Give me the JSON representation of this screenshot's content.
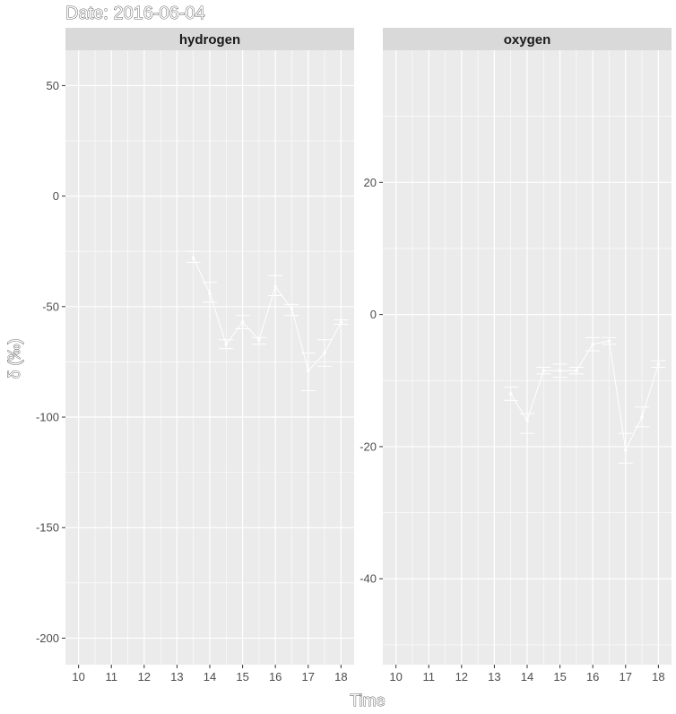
{
  "chart_data": {
    "type": "line",
    "title": "Date: 2016-06-04",
    "xlabel": "Time",
    "ylabel": "δ (‰)",
    "x_ticks": [
      10,
      11,
      12,
      13,
      14,
      15,
      16,
      17,
      18
    ],
    "xlim": [
      9.6,
      18.4
    ],
    "grid": true,
    "legend": "none",
    "colors": {
      "panel_bg": "#ebebeb",
      "strip_bg": "#d9d9d9",
      "grid": "#ffffff",
      "series": "#ffffff"
    },
    "facets": [
      {
        "label": "hydrogen",
        "ylim": [
          -212,
          66
        ],
        "y_ticks": [
          50,
          0,
          -50,
          -100,
          -150,
          -200
        ],
        "points": [
          {
            "x": 13.5,
            "y": -28,
            "ymin": -30,
            "ymax": -25
          },
          {
            "x": 14.0,
            "y": -44,
            "ymin": -48,
            "ymax": -39
          },
          {
            "x": 14.5,
            "y": -67,
            "ymin": -69,
            "ymax": -65
          },
          {
            "x": 15.0,
            "y": -57,
            "ymin": -60,
            "ymax": -54
          },
          {
            "x": 15.5,
            "y": -65,
            "ymin": -67,
            "ymax": -64
          },
          {
            "x": 16.0,
            "y": -41,
            "ymin": -45,
            "ymax": -36
          },
          {
            "x": 16.5,
            "y": -51,
            "ymin": -54,
            "ymax": -49
          },
          {
            "x": 17.0,
            "y": -79,
            "ymin": -88,
            "ymax": -71
          },
          {
            "x": 17.5,
            "y": -71,
            "ymin": -77,
            "ymax": -65
          },
          {
            "x": 18.0,
            "y": -57,
            "ymin": -58,
            "ymax": -56
          }
        ]
      },
      {
        "label": "oxygen",
        "ylim": [
          -53,
          40
        ],
        "y_ticks": [
          20,
          0,
          -20,
          -40
        ],
        "points": [
          {
            "x": 13.5,
            "y": -12,
            "ymin": -13,
            "ymax": -11
          },
          {
            "x": 14.0,
            "y": -16,
            "ymin": -18,
            "ymax": -15
          },
          {
            "x": 14.5,
            "y": -8.5,
            "ymin": -9,
            "ymax": -8
          },
          {
            "x": 15.0,
            "y": -8.5,
            "ymin": -9.5,
            "ymax": -7.5
          },
          {
            "x": 15.5,
            "y": -8.5,
            "ymin": -9,
            "ymax": -8
          },
          {
            "x": 16.0,
            "y": -4.5,
            "ymin": -5.5,
            "ymax": -3.5
          },
          {
            "x": 16.5,
            "y": -4,
            "ymin": -4.5,
            "ymax": -3.5
          },
          {
            "x": 17.0,
            "y": -20.5,
            "ymin": -22.5,
            "ymax": -18
          },
          {
            "x": 17.5,
            "y": -15.5,
            "ymin": -17,
            "ymax": -14
          },
          {
            "x": 18.0,
            "y": -7.5,
            "ymin": -8,
            "ymax": -7
          }
        ]
      }
    ]
  }
}
